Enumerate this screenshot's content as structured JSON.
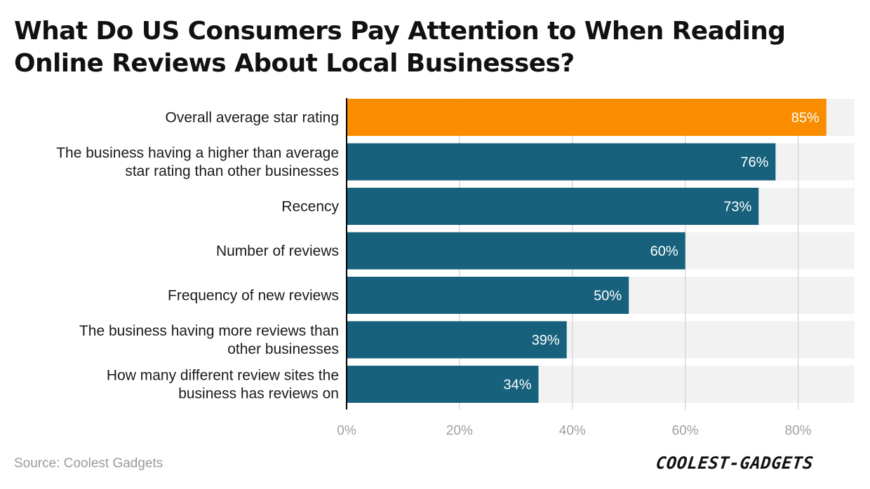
{
  "chart_data": {
    "type": "bar",
    "orientation": "horizontal",
    "title": "What Do US Consumers Pay Attention to When Reading Online Reviews About Local Businesses?",
    "categories": [
      [
        "Overall average star rating"
      ],
      [
        "The business having a higher than average",
        "star rating than other businesses"
      ],
      [
        "Recency"
      ],
      [
        "Number of reviews"
      ],
      [
        "Frequency of new reviews"
      ],
      [
        "The business having more reviews than",
        "other businesses"
      ],
      [
        "How many different review sites the",
        "business has reviews on"
      ]
    ],
    "values": [
      85,
      76,
      73,
      60,
      50,
      39,
      34
    ],
    "value_labels": [
      "85%",
      "76%",
      "73%",
      "60%",
      "50%",
      "39%",
      "34%"
    ],
    "xlim": [
      0,
      90
    ],
    "xticks": [
      0,
      20,
      40,
      60,
      80
    ],
    "xtick_labels": [
      "0%",
      "20%",
      "40%",
      "60%",
      "80%"
    ],
    "grid": true,
    "colors": {
      "highlight": "#FA8C00",
      "bar": "#17617C",
      "track": "#F2F2F2",
      "grid": "#D4D4D4",
      "axis": "#000000"
    },
    "highlight_index": 0
  },
  "source": "Source: Coolest Gadgets",
  "logo": "COOLEST-GADGETS"
}
